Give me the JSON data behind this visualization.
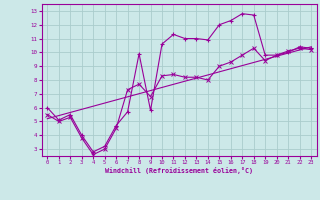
{
  "xlabel": "Windchill (Refroidissement éolien,°C)",
  "ylabel": "",
  "bg_color": "#cce8e8",
  "grid_color": "#aacccc",
  "line_color": "#990099",
  "xlim": [
    -0.5,
    23.5
  ],
  "ylim": [
    2.5,
    13.5
  ],
  "xticks": [
    0,
    1,
    2,
    3,
    4,
    5,
    6,
    7,
    8,
    9,
    10,
    11,
    12,
    13,
    14,
    15,
    16,
    17,
    18,
    19,
    20,
    21,
    22,
    23
  ],
  "yticks": [
    3,
    4,
    5,
    6,
    7,
    8,
    9,
    10,
    11,
    12,
    13
  ],
  "line1_x": [
    0,
    1,
    2,
    3,
    4,
    5,
    6,
    7,
    8,
    9,
    10,
    11,
    12,
    13,
    14,
    15,
    16,
    17,
    18,
    19,
    20,
    21,
    22,
    23
  ],
  "line1_y": [
    6.0,
    5.1,
    5.5,
    4.0,
    2.8,
    3.2,
    4.7,
    5.7,
    9.9,
    5.8,
    10.6,
    11.3,
    11.0,
    11.0,
    10.9,
    12.0,
    12.3,
    12.8,
    12.7,
    9.8,
    9.8,
    10.0,
    10.4,
    10.3
  ],
  "line2_x": [
    0,
    23
  ],
  "line2_y": [
    5.2,
    10.4
  ],
  "line3_x": [
    0,
    1,
    2,
    3,
    4,
    5,
    6,
    7,
    8,
    9,
    10,
    11,
    12,
    13,
    14,
    15,
    16,
    17,
    18,
    19,
    20,
    21,
    22,
    23
  ],
  "line3_y": [
    5.5,
    5.0,
    5.3,
    3.8,
    2.6,
    3.0,
    4.5,
    7.3,
    7.7,
    6.8,
    8.3,
    8.4,
    8.2,
    8.2,
    8.0,
    9.0,
    9.3,
    9.8,
    10.3,
    9.4,
    9.8,
    10.1,
    10.3,
    10.2
  ]
}
